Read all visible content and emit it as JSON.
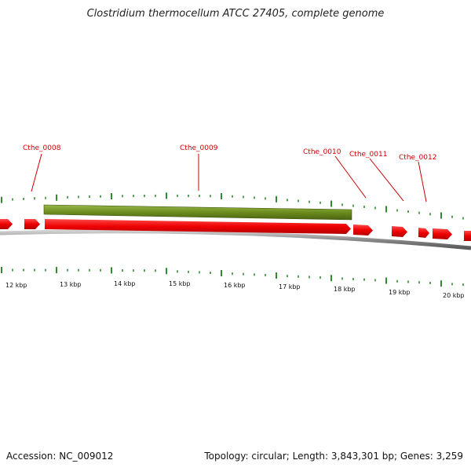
{
  "title": "Clostridium thermocellum ATCC 27405, complete genome",
  "footer": {
    "accession": "Accession: NC_009012",
    "summary": "Topology: circular; Length: 3,843,301 bp; Genes: 3,259"
  },
  "colors": {
    "forward_gene": "#ee0000",
    "reverse_gene": "#6b8c1e",
    "backbone": "#888888",
    "ticks": "#2e8b2e",
    "label": "#cc0000"
  },
  "gene_labels": [
    "Cthe_0008",
    "Cthe_0009",
    "Cthe_0010",
    "Cthe_0011",
    "Cthe_0012"
  ],
  "kbp_labels": [
    "12 kbp",
    "13 kbp",
    "14 kbp",
    "15 kbp",
    "16 kbp",
    "17 kbp",
    "18 kbp",
    "19 kbp",
    "20 kbp"
  ]
}
